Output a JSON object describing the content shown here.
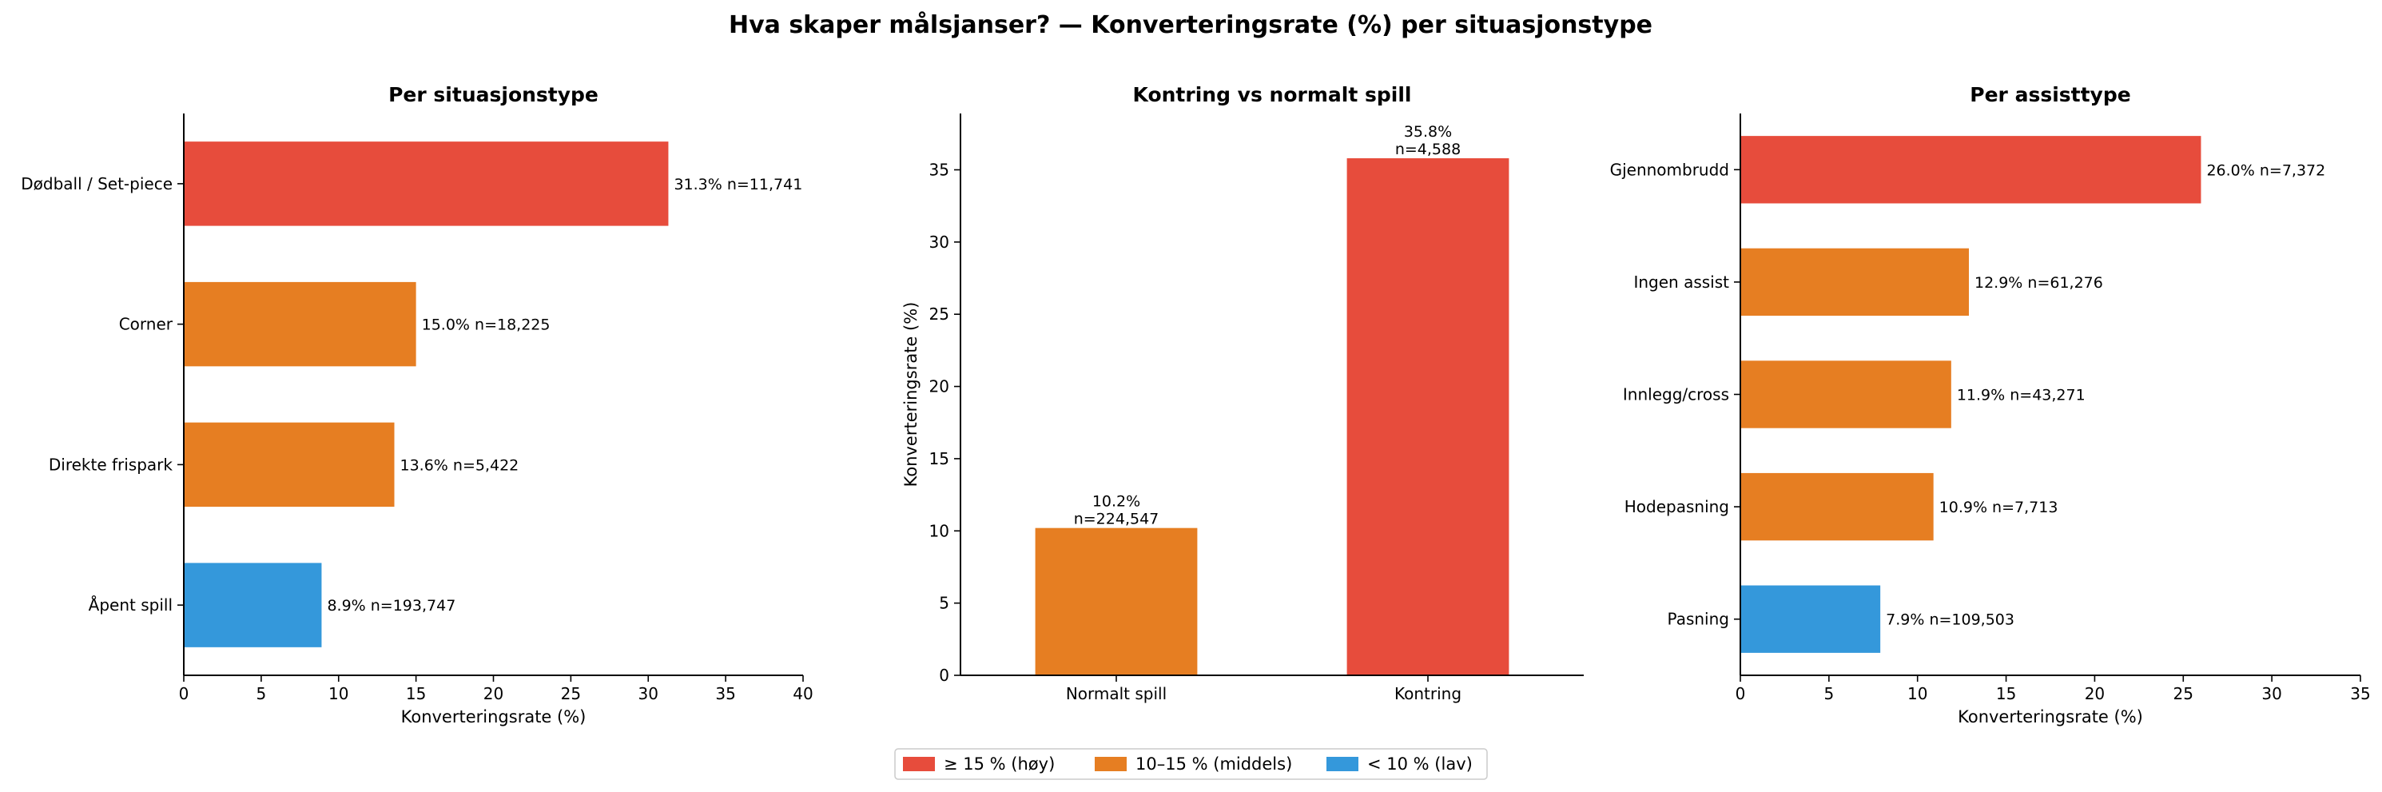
{
  "figure": {
    "suptitle": "Hva skaper målsjanser? — Konverteringsrate (%) per situasjonstype"
  },
  "colors": {
    "high": "#e74c3c",
    "mid": "#e67e22",
    "low": "#3498db"
  },
  "legend": {
    "placement": "bottom-center",
    "items": [
      {
        "label": "≥ 15 % (høy)",
        "color": "#e74c3c"
      },
      {
        "label": "10–15 % (middels)",
        "color": "#e67e22"
      },
      {
        "label": "< 10 % (lav)",
        "color": "#3498db"
      }
    ]
  },
  "chart_data": [
    {
      "type": "bar",
      "orientation": "horizontal",
      "title": "Per situasjonstype",
      "xlabel": "Konverteringsrate (%)",
      "ylabel": "",
      "xlim": [
        0,
        40
      ],
      "xticks": [
        0,
        5,
        10,
        15,
        20,
        25,
        30,
        35,
        40
      ],
      "categories": [
        "Dødball / Set-piece",
        "Corner",
        "Direkte frispark",
        "Åpent spill"
      ],
      "values": [
        31.3,
        15.0,
        13.6,
        8.9
      ],
      "colors": [
        "#e74c3c",
        "#e67e22",
        "#e67e22",
        "#3498db"
      ],
      "labels": [
        "31.3%  n=11,741",
        "15.0%  n=18,225",
        "13.6%  n=5,422",
        "8.9%  n=193,747"
      ],
      "grid": false
    },
    {
      "type": "bar",
      "orientation": "vertical",
      "title": "Kontring vs normalt spill",
      "xlabel": "",
      "ylabel": "Konverteringsrate (%)",
      "ylim": [
        0,
        38.9
      ],
      "yticks": [
        0,
        5,
        10,
        15,
        20,
        25,
        30,
        35
      ],
      "categories": [
        "Normalt spill",
        "Kontring"
      ],
      "values": [
        10.2,
        35.8
      ],
      "colors": [
        "#e67e22",
        "#e74c3c"
      ],
      "labels": [
        [
          "10.2%",
          "n=224,547"
        ],
        [
          "35.8%",
          "n=4,588"
        ]
      ],
      "grid": false
    },
    {
      "type": "bar",
      "orientation": "horizontal",
      "title": "Per assisttype",
      "xlabel": "Konverteringsrate (%)",
      "ylabel": "",
      "xlim": [
        0,
        35
      ],
      "xticks": [
        0,
        5,
        10,
        15,
        20,
        25,
        30,
        35
      ],
      "categories": [
        "Gjennombrudd",
        "Ingen assist",
        "Innlegg/cross",
        "Hodepasning",
        "Pasning"
      ],
      "values": [
        26.0,
        12.9,
        11.9,
        10.9,
        7.9
      ],
      "colors": [
        "#e74c3c",
        "#e67e22",
        "#e67e22",
        "#e67e22",
        "#3498db"
      ],
      "labels": [
        "26.0%  n=7,372",
        "12.9%  n=61,276",
        "11.9%  n=43,271",
        "10.9%  n=7,713",
        "7.9%  n=109,503"
      ],
      "grid": false
    }
  ]
}
